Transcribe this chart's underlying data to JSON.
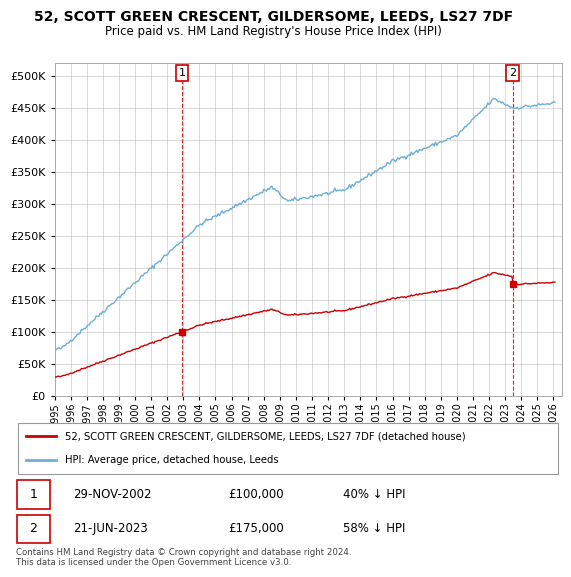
{
  "title": "52, SCOTT GREEN CRESCENT, GILDERSOME, LEEDS, LS27 7DF",
  "subtitle": "Price paid vs. HM Land Registry's House Price Index (HPI)",
  "legend_line1": "52, SCOTT GREEN CRESCENT, GILDERSOME, LEEDS, LS27 7DF (detached house)",
  "legend_line2": "HPI: Average price, detached house, Leeds",
  "annotation1_label": "1",
  "annotation1_date": "29-NOV-2002",
  "annotation1_price": "£100,000",
  "annotation1_hpi": "40% ↓ HPI",
  "annotation2_label": "2",
  "annotation2_date": "21-JUN-2023",
  "annotation2_price": "£175,000",
  "annotation2_hpi": "58% ↓ HPI",
  "footer": "Contains HM Land Registry data © Crown copyright and database right 2024.\nThis data is licensed under the Open Government Licence v3.0.",
  "sale1_year": 2002.91,
  "sale1_price": 100000,
  "sale2_year": 2023.47,
  "sale2_price": 175000,
  "hpi_color": "#6baed6",
  "price_color": "#cc0000",
  "background_color": "#ffffff",
  "grid_color": "#cccccc",
  "ylim_min": 0,
  "ylim_max": 520000,
  "xlim_min": 1995.0,
  "xlim_max": 2026.5,
  "yticks": [
    0,
    50000,
    100000,
    150000,
    200000,
    250000,
    300000,
    350000,
    400000,
    450000,
    500000
  ],
  "xtick_start": 1995,
  "xtick_end": 2027
}
